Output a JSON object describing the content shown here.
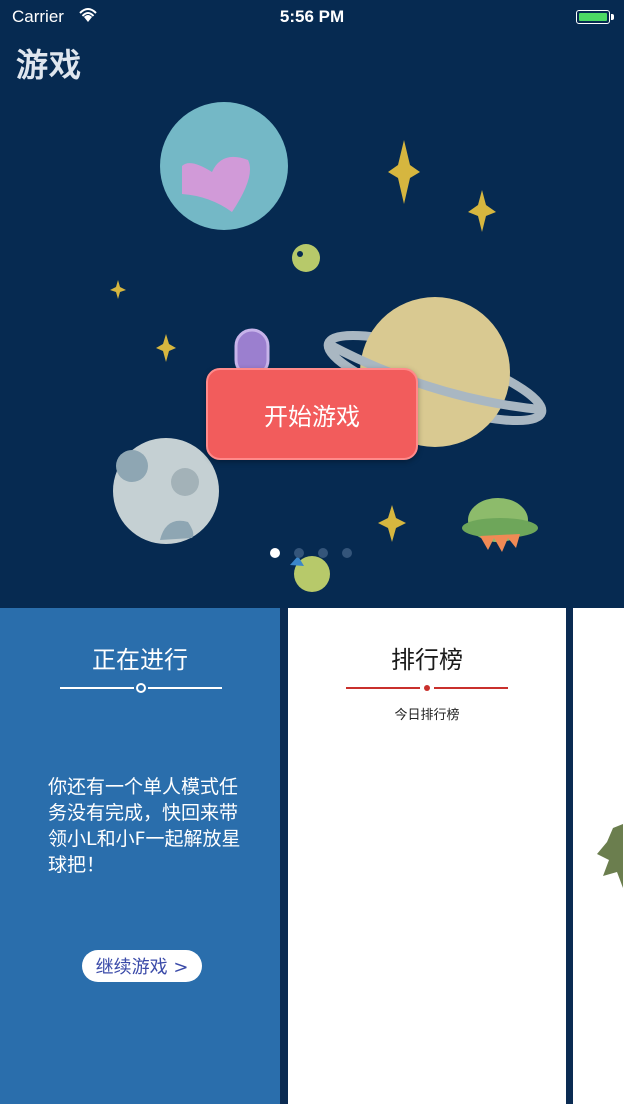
{
  "status_bar": {
    "carrier": "Carrier",
    "time": "5:56 PM",
    "battery_color": "#4cd964"
  },
  "header": {
    "title": "游戏"
  },
  "hero": {
    "start_button_label": "开始游戏",
    "page_count": 4,
    "active_page": 1,
    "background_color": "#062a51",
    "button_color": "#f25c5c"
  },
  "cards": [
    {
      "title": "正在进行",
      "message": "你还有一个单人模式任务没有完成，快回来带领小L和小F一起解放星球把！",
      "button_label": "继续游戏 >",
      "background_color": "#2a6eac"
    },
    {
      "title": "排行榜",
      "subtitle": "今日排行榜",
      "accent_color": "#c9302c"
    }
  ],
  "icons": [
    "wifi-icon",
    "battery-icon"
  ]
}
